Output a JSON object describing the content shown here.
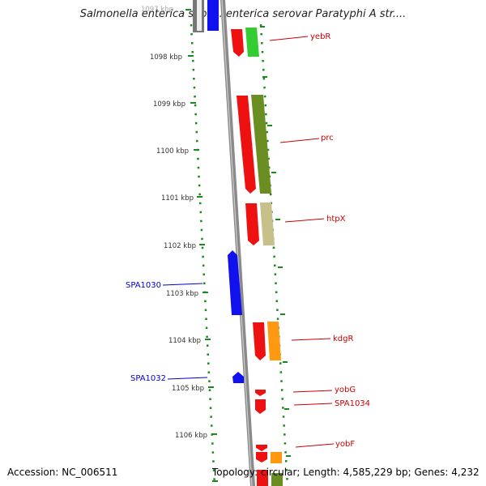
{
  "title": "Salmonella enterica subsp. enterica serovar Paratyphi A str....",
  "footer": {
    "accession": "Accession: NC_006511",
    "topology": "Topology: circular; Length: 4,585,229 bp; Genes: 4,232"
  },
  "ruler": {
    "ticks": [
      "1097 kbp",
      "1098 kbp",
      "1099 kbp",
      "1100 kbp",
      "1101 kbp",
      "1102 kbp",
      "1103 kbp",
      "1104 kbp",
      "1105 kbp",
      "1106 kbp"
    ]
  },
  "genes_right": [
    "yebR",
    "prc",
    "htpX",
    "kdgR",
    "yobG",
    "SPA1034",
    "yobF"
  ],
  "genes_left": [
    "SPA1030",
    "SPA1032"
  ],
  "colors": {
    "backbone": "#8a8a8a",
    "dots": "#1a8a1a",
    "red_gene": "#ee1111",
    "blue_gene": "#1111ee",
    "label_red": "#cc0000",
    "label_blue": "#0000cc",
    "green": "#33cc33",
    "olive": "#6b8e23",
    "khaki": "#c8c08a",
    "orange": "#ff9911"
  }
}
